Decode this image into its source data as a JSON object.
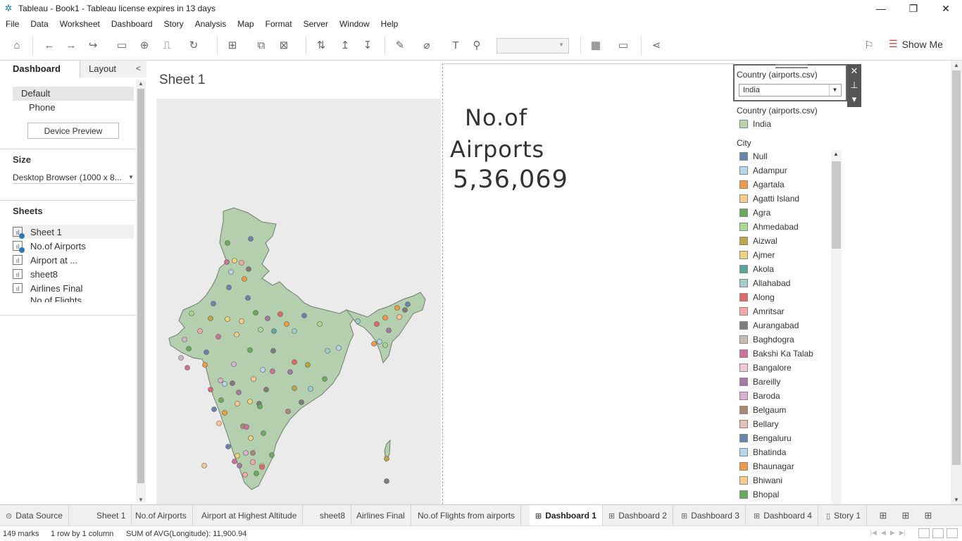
{
  "window": {
    "title": "Tableau - Book1 - Tableau license expires in 13 days"
  },
  "menu": [
    "File",
    "Data",
    "Worksheet",
    "Dashboard",
    "Story",
    "Analysis",
    "Map",
    "Format",
    "Server",
    "Window",
    "Help"
  ],
  "toolbar": {
    "show_me_label": "Show Me"
  },
  "left_pane": {
    "tabs": [
      "Dashboard",
      "Layout"
    ],
    "device_default": "Default",
    "device_phone": "Phone",
    "device_preview_button": "Device Preview",
    "size_header": "Size",
    "size_value": "Desktop Browser (1000 x 8...",
    "sheets_header": "Sheets",
    "sheets": [
      "Sheet 1",
      "No.of Airports",
      "Airport  at ...",
      "sheet8",
      "Airlines Final",
      "No.of Flights"
    ]
  },
  "sheet1": {
    "title": "Sheet 1"
  },
  "kpi": {
    "line1": "No.of",
    "line2": "Airports",
    "value": "5,36,069"
  },
  "filter": {
    "title": "Country (airports.csv)",
    "selected": "India"
  },
  "legends": {
    "country_title": "Country (airports.csv)",
    "country_items": [
      {
        "label": "India",
        "color": "#b9d3b3"
      }
    ],
    "city_title": "City",
    "city_items": [
      {
        "label": "Null",
        "color": "#6b84ad"
      },
      {
        "label": "Adampur",
        "color": "#b9d5ea"
      },
      {
        "label": "Agartala",
        "color": "#f59a3f"
      },
      {
        "label": "Agatti Island",
        "color": "#fcc88f"
      },
      {
        "label": "Agra",
        "color": "#6aab5e"
      },
      {
        "label": "Ahmedabad",
        "color": "#a9d98f"
      },
      {
        "label": "Aizwal",
        "color": "#bda644"
      },
      {
        "label": "Ajmer",
        "color": "#f3d37a"
      },
      {
        "label": "Akola",
        "color": "#5aa6a3"
      },
      {
        "label": "Allahabad",
        "color": "#9fcfcc"
      },
      {
        "label": "Along",
        "color": "#e4676c"
      },
      {
        "label": "Amritsar",
        "color": "#f6a7a6"
      },
      {
        "label": "Aurangabad",
        "color": "#807c7b"
      },
      {
        "label": "Baghdogra",
        "color": "#c7bcb8"
      },
      {
        "label": "Bakshi Ka Talab",
        "color": "#d0709b"
      },
      {
        "label": "Bangalore",
        "color": "#f4c5d8"
      },
      {
        "label": "Bareilly",
        "color": "#a57aa4"
      },
      {
        "label": "Baroda",
        "color": "#d8b3d1"
      },
      {
        "label": "Belgaum",
        "color": "#a98975"
      },
      {
        "label": "Bellary",
        "color": "#e0c3b4"
      },
      {
        "label": "Bengaluru",
        "color": "#6b84ad"
      },
      {
        "label": "Bhatinda",
        "color": "#b9d5ea"
      },
      {
        "label": "Bhaunagar",
        "color": "#f59a3f"
      },
      {
        "label": "Bhiwani",
        "color": "#fcc88f"
      },
      {
        "label": "Bhopal",
        "color": "#6aab5e"
      }
    ]
  },
  "bottom_tabs": [
    {
      "label": "Data Source",
      "icon": "database-icon"
    },
    {
      "label": "Sheet 1"
    },
    {
      "label": "No.of Airports"
    },
    {
      "label": "Airport  at Highest Altitude"
    },
    {
      "label": "sheet8"
    },
    {
      "label": "Airlines Final"
    },
    {
      "label": "No.of Flights from airports"
    },
    {
      "label": "Dashboard 1",
      "icon": "dashboard-icon",
      "active": true
    },
    {
      "label": "Dashboard 2",
      "icon": "dashboard-icon"
    },
    {
      "label": "Dashboard 3",
      "icon": "dashboard-icon"
    },
    {
      "label": "Dashboard 4",
      "icon": "dashboard-icon"
    },
    {
      "label": "Story 1",
      "icon": "story-icon"
    }
  ],
  "status": {
    "marks": "149 marks",
    "rows": "1 row by 1 column",
    "sum": "SUM of AVG(Longitude): 11,900.94"
  }
}
